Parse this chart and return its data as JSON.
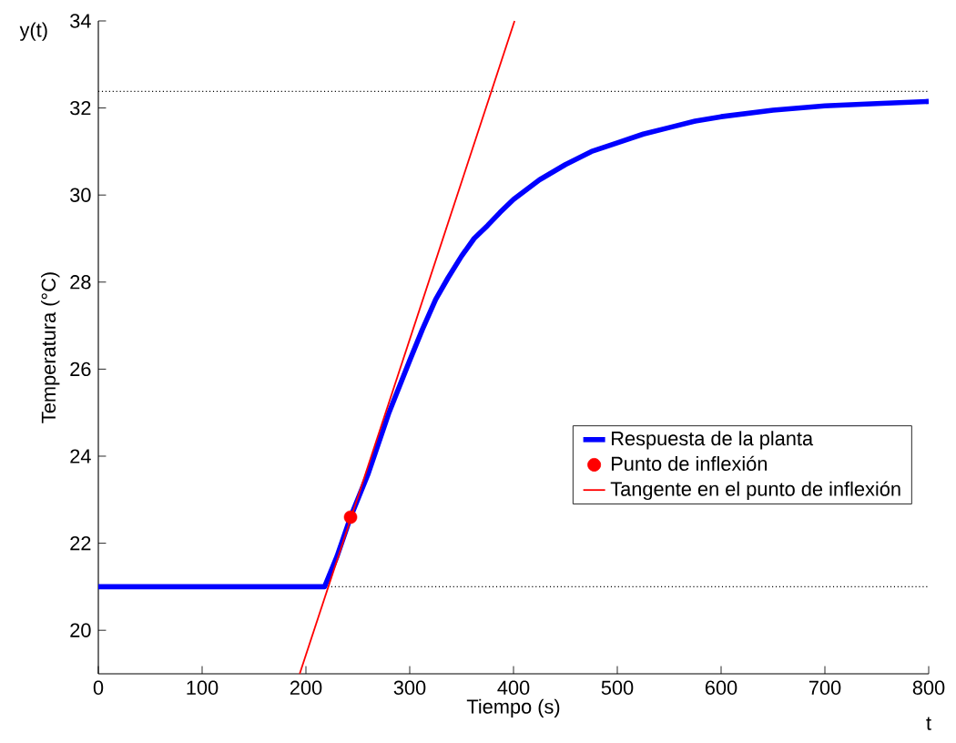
{
  "chart_data": {
    "type": "line",
    "xlabel": "Tiempo (s)",
    "ylabel": "Temperatura (°C)",
    "xlim": [
      0,
      800
    ],
    "ylim": [
      19,
      34
    ],
    "xticks": [
      0,
      100,
      200,
      300,
      400,
      500,
      600,
      700,
      800
    ],
    "yticks": [
      20,
      22,
      24,
      26,
      28,
      30,
      32,
      34
    ],
    "legend": "right",
    "series": [
      {
        "name": "Respuesta de la planta",
        "color": "#0000ff",
        "marker": "none",
        "line_style": "solid",
        "x": [
          0,
          100,
          218,
          230,
          243,
          260,
          280,
          300,
          312,
          325,
          337,
          350,
          362,
          375,
          387,
          400,
          425,
          450,
          475,
          500,
          525,
          550,
          575,
          600,
          650,
          700,
          750,
          800
        ],
        "values": [
          21,
          21,
          21,
          21.7,
          22.6,
          23.6,
          25.0,
          26.2,
          26.9,
          27.6,
          28.1,
          28.6,
          29.0,
          29.3,
          29.6,
          29.9,
          30.35,
          30.7,
          31.0,
          31.2,
          31.4,
          31.55,
          31.7,
          31.8,
          31.95,
          32.05,
          32.1,
          32.15
        ]
      },
      {
        "name": "Punto de inflexión",
        "type": "scatter",
        "color": "#ff0000",
        "marker": "circle",
        "x": [
          243
        ],
        "values": [
          22.6
        ]
      },
      {
        "name": "Tangente en el punto de inflexión",
        "color": "#ff0000",
        "marker": "none",
        "line_style": "solid",
        "x": [
          194,
          401
        ],
        "values": [
          19,
          34
        ]
      }
    ],
    "ref_lines": [
      {
        "axis": "y",
        "value": 32.38,
        "color": "#000000",
        "line_style": "dotted"
      },
      {
        "axis": "y",
        "value": 21,
        "color": "#000000",
        "line_style": "dotted"
      }
    ],
    "annotations": [
      "y(t)",
      "t"
    ]
  }
}
